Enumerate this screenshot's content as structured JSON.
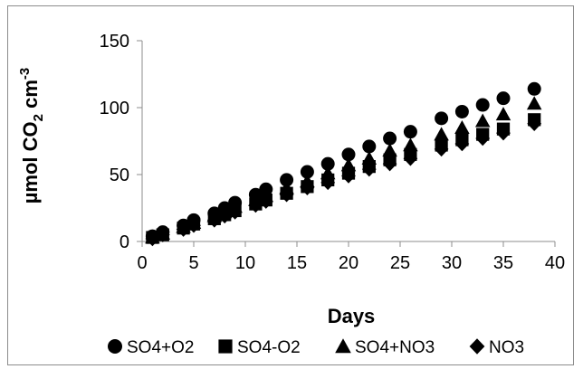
{
  "chart_data": {
    "type": "scatter",
    "title": "",
    "xlabel": "Days",
    "ylabel": {
      "prefix": "µmol CO",
      "sub": "2",
      "middle": " cm",
      "sup": "-3"
    },
    "xlim": [
      0,
      40
    ],
    "ylim": [
      0,
      150
    ],
    "xticks": [
      "0",
      "5",
      "10",
      "15",
      "20",
      "25",
      "30",
      "35",
      "40"
    ],
    "yticks": [
      "0",
      "50",
      "100",
      "150"
    ],
    "grid": false,
    "legend": "bottom",
    "series": [
      {
        "name": "SO4+O2",
        "marker": "circle",
        "color": "#000000",
        "x": [
          1,
          2,
          4,
          5,
          7,
          8,
          9,
          11,
          12,
          14,
          16,
          18,
          20,
          22,
          24,
          26,
          29,
          31,
          33,
          35,
          38
        ],
        "y": [
          4,
          7,
          12,
          16,
          21,
          25,
          29,
          35,
          39,
          46,
          52,
          58,
          65,
          71,
          77,
          82,
          92,
          97,
          102,
          107,
          114
        ]
      },
      {
        "name": "SO4-O2",
        "marker": "square",
        "color": "#000000",
        "x": [
          1,
          2,
          4,
          5,
          7,
          8,
          9,
          11,
          12,
          14,
          16,
          18,
          20,
          22,
          24,
          26,
          29,
          31,
          33,
          35,
          38
        ],
        "y": [
          3,
          5,
          10,
          13,
          17,
          20,
          23,
          28,
          31,
          36,
          41,
          46,
          51,
          56,
          61,
          65,
          72,
          76,
          80,
          84,
          91
        ]
      },
      {
        "name": "SO4+NO3",
        "marker": "triangle",
        "color": "#000000",
        "x": [
          1,
          2,
          4,
          5,
          7,
          8,
          9,
          11,
          12,
          14,
          16,
          18,
          20,
          22,
          24,
          26,
          29,
          31,
          33,
          35,
          38
        ],
        "y": [
          3,
          6,
          11,
          14,
          19,
          22,
          26,
          31,
          34,
          40,
          45,
          51,
          57,
          62,
          68,
          72,
          80,
          85,
          90,
          95,
          103
        ]
      },
      {
        "name": "NO3",
        "marker": "diamond",
        "color": "#000000",
        "x": [
          1,
          2,
          4,
          5,
          7,
          8,
          9,
          11,
          12,
          14,
          16,
          18,
          20,
          22,
          24,
          26,
          29,
          31,
          33,
          35,
          38
        ],
        "y": [
          2,
          5,
          9,
          12,
          16,
          19,
          22,
          27,
          30,
          35,
          40,
          44,
          49,
          54,
          58,
          62,
          69,
          73,
          77,
          81,
          88
        ]
      }
    ]
  }
}
